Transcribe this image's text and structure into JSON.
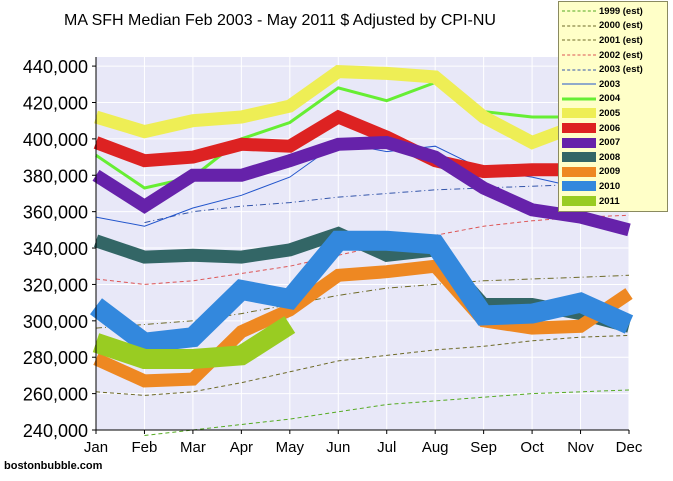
{
  "chart_data": {
    "type": "line",
    "title": "MA SFH Median Feb 2003 - May 2011 $ Adjusted by CPI-NU",
    "source": "bostonbubble.com",
    "categories": [
      "Jan",
      "Feb",
      "Mar",
      "Apr",
      "May",
      "Jun",
      "Jul",
      "Aug",
      "Sep",
      "Oct",
      "Nov",
      "Dec"
    ],
    "y_tick_labels": [
      "240,000",
      "260,000",
      "280,000",
      "300,000",
      "320,000",
      "340,000",
      "360,000",
      "380,000",
      "400,000",
      "420,000",
      "440,000"
    ],
    "ylim": [
      240000,
      445000
    ],
    "grid": true,
    "legend_position": "top-right",
    "plot_background": "#e8e8f8",
    "series": [
      {
        "name": "1999 (est)",
        "color": "#55aa22",
        "style": "dashed-thin",
        "values": [
          null,
          237000,
          240000,
          243000,
          246000,
          250000,
          254000,
          256000,
          258000,
          260000,
          261000,
          262000
        ]
      },
      {
        "name": "2000 (est)",
        "color": "#6e6a28",
        "style": "dashed-thin",
        "values": [
          261000,
          259000,
          261000,
          266000,
          272000,
          278000,
          281000,
          284000,
          286000,
          289000,
          291000,
          292000
        ]
      },
      {
        "name": "2001 (est)",
        "color": "#6e6a28",
        "style": "dashdot-thin",
        "values": [
          296000,
          298000,
          300000,
          304000,
          309000,
          314000,
          318000,
          320000,
          322000,
          323000,
          324000,
          325000
        ]
      },
      {
        "name": "2002 (est)",
        "color": "#dd5555",
        "style": "dashed-thin",
        "values": [
          323000,
          320000,
          322000,
          326000,
          330000,
          336000,
          342000,
          347000,
          352000,
          355000,
          357000,
          358000
        ]
      },
      {
        "name": "2003 (est)",
        "color": "#3355aa",
        "style": "dashdot-thin",
        "values": [
          null,
          354000,
          360000,
          363000,
          365000,
          368000,
          370000,
          372000,
          373000,
          374000,
          375000,
          376000
        ]
      },
      {
        "name": "2003",
        "color": "#2255cc",
        "style": "thin",
        "values": [
          357000,
          352000,
          362000,
          369000,
          379000,
          398000,
          393000,
          396000,
          383000,
          379000,
          373000,
          378000
        ]
      },
      {
        "name": "2004",
        "color": "#66ee33",
        "style": "medium",
        "values": [
          391000,
          373000,
          379000,
          400000,
          409000,
          428000,
          421000,
          431000,
          415000,
          412000,
          412000,
          null
        ]
      },
      {
        "name": "2005",
        "color": "#eeee55",
        "style": "thick",
        "values": [
          412000,
          404000,
          410000,
          412000,
          418000,
          437000,
          436000,
          434000,
          412000,
          398000,
          408000,
          null
        ]
      },
      {
        "name": "2006",
        "color": "#dd2222",
        "style": "thick",
        "values": [
          398000,
          388000,
          390000,
          397000,
          396000,
          412000,
          401000,
          388000,
          382000,
          383000,
          383000,
          377000
        ]
      },
      {
        "name": "2007",
        "color": "#6622aa",
        "style": "thick",
        "values": [
          380000,
          363000,
          380000,
          380000,
          388000,
          397000,
          398000,
          390000,
          373000,
          361000,
          357000,
          350000
        ]
      },
      {
        "name": "2008",
        "color": "#336666",
        "style": "thick",
        "values": [
          344000,
          335000,
          336000,
          335000,
          339000,
          348000,
          336000,
          339000,
          309000,
          309000,
          304000,
          297000
        ]
      },
      {
        "name": "2009",
        "color": "#ee8822",
        "style": "thick",
        "values": [
          279000,
          267000,
          268000,
          294000,
          306000,
          325000,
          327000,
          330000,
          300000,
          296000,
          297000,
          315000
        ]
      },
      {
        "name": "2010",
        "color": "#3388dd",
        "style": "extra-thick",
        "values": [
          308000,
          288000,
          291000,
          317000,
          312000,
          344000,
          344000,
          342000,
          303000,
          304000,
          310000,
          298000
        ]
      },
      {
        "name": "2011",
        "color": "#99cc22",
        "style": "extra-thick",
        "values": [
          288000,
          279000,
          279000,
          281000,
          298000,
          null,
          null,
          null,
          null,
          null,
          null,
          null
        ]
      }
    ]
  }
}
